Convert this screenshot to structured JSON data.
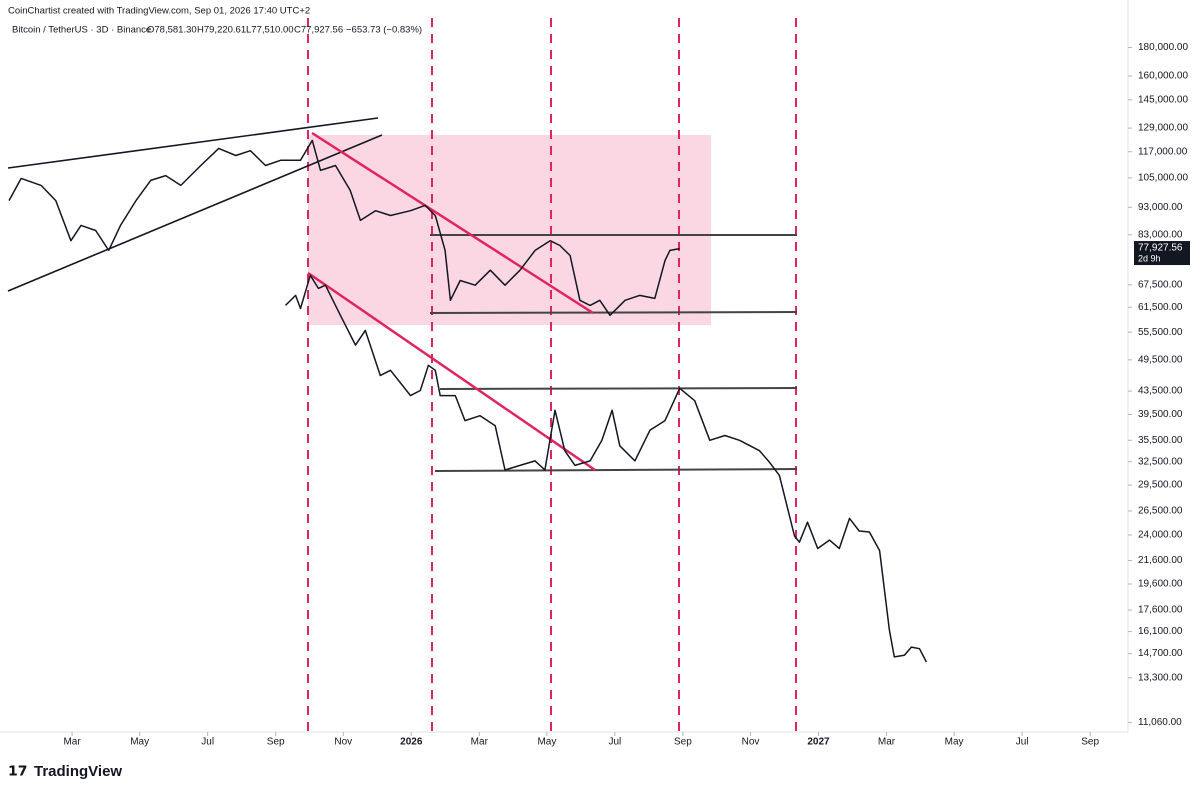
{
  "header": {
    "credit": "CoinChartist created with TradingView.com, Sep 01, 2026 17:40 UTC+2",
    "symbol": "Bitcoin / TetherUS · 3D · Binance",
    "open": "O78,581.30",
    "high": "H79,220.61",
    "low": "L77,510.00",
    "close": "C77,927.56",
    "change": "−653.73 (−0.83%)"
  },
  "chart_data": {
    "type": "line",
    "log_scale": true,
    "grid": false,
    "ylim": [
      10500,
      200000
    ],
    "xlim": [
      2024.99,
      2027.76
    ],
    "yticks": [
      {
        "value": 180000,
        "label": "180,000.00"
      },
      {
        "value": 160000,
        "label": "160,000.00"
      },
      {
        "value": 145000,
        "label": "145,000.00"
      },
      {
        "value": 129000,
        "label": "129,000.00"
      },
      {
        "value": 117000,
        "label": "117,000.00"
      },
      {
        "value": 105000,
        "label": "105,000.00"
      },
      {
        "value": 93000,
        "label": "93,000.00"
      },
      {
        "value": 83000,
        "label": "83,000.00"
      },
      {
        "value": 67500,
        "label": "67,500.00"
      },
      {
        "value": 61500,
        "label": "61,500.00"
      },
      {
        "value": 55500,
        "label": "55,500.00"
      },
      {
        "value": 49500,
        "label": "49,500.00"
      },
      {
        "value": 43500,
        "label": "43,500.00"
      },
      {
        "value": 39500,
        "label": "39,500.00"
      },
      {
        "value": 35500,
        "label": "35,500.00"
      },
      {
        "value": 32500,
        "label": "32,500.00"
      },
      {
        "value": 29500,
        "label": "29,500.00"
      },
      {
        "value": 26500,
        "label": "26,500.00"
      },
      {
        "value": 24000,
        "label": "24,000.00"
      },
      {
        "value": 21600,
        "label": "21,600.00"
      },
      {
        "value": 19600,
        "label": "19,600.00"
      },
      {
        "value": 17600,
        "label": "17,600.00"
      },
      {
        "value": 16100,
        "label": "16,100.00"
      },
      {
        "value": 14700,
        "label": "14,700.00"
      },
      {
        "value": 13300,
        "label": "13,300.00"
      },
      {
        "value": 11060,
        "label": "11,060.00"
      }
    ],
    "xticks": [
      {
        "value": 2025.167,
        "label": "Mar"
      },
      {
        "value": 2025.333,
        "label": "May"
      },
      {
        "value": 2025.5,
        "label": "Jul"
      },
      {
        "value": 2025.667,
        "label": "Sep"
      },
      {
        "value": 2025.833,
        "label": "Nov"
      },
      2026,
      {
        "value": 2026.167,
        "label": "Mar"
      },
      {
        "value": 2026.333,
        "label": "May"
      },
      {
        "value": 2026.5,
        "label": "Jul"
      },
      {
        "value": 2026.667,
        "label": "Sep"
      },
      {
        "value": 2026.833,
        "label": "Nov"
      },
      2027,
      {
        "value": 2027.167,
        "label": "Mar"
      },
      {
        "value": 2027.333,
        "label": "May"
      },
      {
        "value": 2027.5,
        "label": "Jul"
      },
      {
        "value": 2027.667,
        "label": "Sep"
      }
    ],
    "last_price": 77927.56,
    "last_price_label": "77,927.56",
    "countdown": "2d 9h",
    "series": [
      {
        "color": "#131722",
        "x": [
          2025.012,
          2025.042,
          2025.091,
          2025.127,
          2025.164,
          2025.189,
          2025.225,
          2025.257,
          2025.286,
          2025.324,
          2025.36,
          2025.397,
          2025.434,
          2025.483,
          2025.527,
          2025.569,
          2025.605,
          2025.642,
          2025.679,
          2025.728,
          2025.757,
          2025.777,
          2025.814,
          2025.85,
          2025.875,
          2025.912,
          2025.949,
          2025.998,
          2026.034,
          2026.059,
          2026.083,
          2026.096,
          2026.12,
          2026.157,
          2026.194,
          2026.23,
          2026.267,
          2026.304,
          2026.341,
          2026.365,
          2026.39,
          2026.414,
          2026.439,
          2026.463,
          2026.488,
          2026.525,
          2026.561,
          2026.598,
          2026.623,
          2026.635,
          2026.659
        ],
        "values": [
          95600,
          104800,
          101800,
          95600,
          81000,
          86300,
          84500,
          77800,
          86300,
          95600,
          103900,
          106000,
          101800,
          110500,
          118600,
          115200,
          117500,
          110500,
          112900,
          112900,
          122600,
          108300,
          110500,
          99700,
          88100,
          91700,
          89900,
          91700,
          93700,
          89900,
          77800,
          63300,
          68700,
          67400,
          71700,
          67400,
          71700,
          77800,
          81000,
          79400,
          76200,
          63300,
          62000,
          63300,
          59500,
          63300,
          64600,
          63800,
          74600,
          77800,
          78400
        ]
      },
      {
        "color": "#131722",
        "x": [
          2025.691,
          2025.716,
          2025.728,
          2025.752,
          2025.772,
          2025.789,
          2025.826,
          2025.863,
          2025.887,
          2025.924,
          2025.949,
          2025.998,
          2026.022,
          2026.042,
          2026.059,
          2026.071,
          2026.108,
          2026.132,
          2026.169,
          2026.206,
          2026.23,
          2026.267,
          2026.304,
          2026.328,
          2026.353,
          2026.377,
          2026.402,
          2026.439,
          2026.468,
          2026.493,
          2026.512,
          2026.549,
          2026.586,
          2026.623,
          2026.659,
          2026.696,
          2026.733,
          2026.77,
          2026.806,
          2026.855,
          2026.88,
          2026.904,
          2026.941,
          2026.953,
          2026.973,
          2026.998,
          2027.027,
          2027.051,
          2027.076,
          2027.1,
          2027.125,
          2027.15,
          2027.174,
          2027.186,
          2027.211,
          2027.228,
          2027.248,
          2027.265
        ],
        "values": [
          62000,
          64600,
          61200,
          70200,
          66500,
          67400,
          59500,
          52600,
          55900,
          46400,
          47400,
          42700,
          43600,
          48400,
          47400,
          42700,
          42700,
          38500,
          39300,
          37700,
          31400,
          32000,
          32600,
          31400,
          40200,
          34000,
          32000,
          32600,
          35500,
          40200,
          34700,
          32600,
          37000,
          38500,
          44000,
          41800,
          35500,
          36200,
          35500,
          34000,
          32400,
          30700,
          23900,
          23300,
          25300,
          22700,
          23500,
          22700,
          25700,
          24400,
          24300,
          22500,
          16200,
          14500,
          14600,
          15100,
          15000,
          14200
        ]
      }
    ]
  },
  "footer": {
    "logo": "TradingView"
  }
}
